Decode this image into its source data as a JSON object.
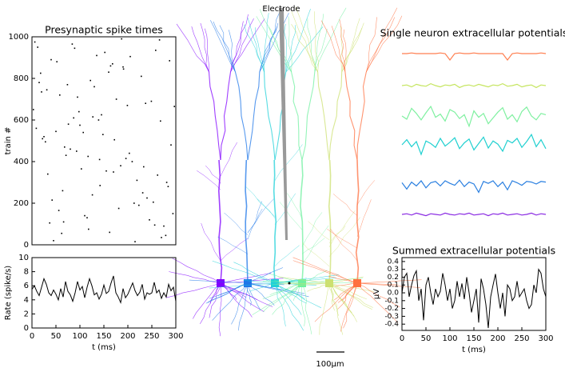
{
  "illustration": {
    "electrode_label": "Electrode",
    "scale_label": "100μm"
  },
  "chart_data": [
    {
      "type": "scatter",
      "title": "Presynaptic spike times",
      "ylabel": "train #",
      "color": "#000000",
      "xlim": [
        0,
        300
      ],
      "ylim": [
        0,
        1000
      ],
      "yticks": [
        0,
        200,
        400,
        600,
        800,
        1000
      ],
      "x": [
        12,
        245,
        87,
        160,
        33,
        290,
        118,
        205,
        64,
        176,
        9,
        270,
        141,
        52,
        223,
        98,
        187,
        281,
        25,
        130,
        256,
        71,
        199,
        42,
        164,
        233,
        107,
        15,
        294,
        152,
        80,
        215,
        58,
        268,
        126,
        191,
        37,
        249,
        103,
        172,
        6,
        284,
        145,
        62,
        228,
        93,
        181,
        20,
        262,
        135,
        76,
        209,
        45,
        297,
        115,
        168,
        28,
        240,
        89,
        155,
        3,
        275,
        122,
        196,
        50,
        219,
        84,
        162,
        31,
        253,
        139,
        68,
        287,
        110,
        185,
        18,
        231,
        95,
        148,
        266,
        56,
        203,
        127,
        40,
        279,
        170,
        74,
        213,
        100,
        258,
        22,
        142,
        190,
        66,
        237,
        117
      ],
      "y": [
        950,
        120,
        610,
        830,
        340,
        480,
        75,
        905,
        260,
        700,
        560,
        35,
        410,
        880,
        190,
        640,
        990,
        300,
        520,
        760,
        95,
        430,
        670,
        215,
        860,
        375,
        540,
        780,
        150,
        925,
        460,
        15,
        720,
        595,
        240,
        845,
        105,
        690,
        365,
        505,
        975,
        280,
        625,
        55,
        810,
        450,
        175,
        735,
        335,
        910,
        580,
        400,
        20,
        665,
        130,
        870,
        495,
        225,
        945,
        355,
        650,
        90,
        790,
        415,
        545,
        310,
        965,
        60,
        745,
        205,
        600,
        470,
        885,
        140,
        380,
        825,
        250,
        710,
        530,
        985,
        165,
        440,
        615,
        890,
        45,
        350,
        770,
        200,
        575,
        935,
        510,
        285,
        855,
        110,
        680,
        425
      ]
    },
    {
      "type": "line",
      "xlabel": "t (ms)",
      "ylabel": "Rate (spike/s)",
      "color": "#000000",
      "xlim": [
        0,
        300
      ],
      "ylim": [
        0,
        10
      ],
      "xticks": [
        0,
        50,
        100,
        150,
        200,
        250,
        300
      ],
      "yticks": [
        0,
        2,
        4,
        6,
        8,
        10
      ],
      "x": [
        0,
        5,
        10,
        15,
        20,
        25,
        30,
        35,
        40,
        45,
        50,
        55,
        60,
        65,
        70,
        75,
        80,
        85,
        90,
        95,
        100,
        105,
        110,
        115,
        120,
        125,
        130,
        135,
        140,
        145,
        150,
        155,
        160,
        165,
        170,
        175,
        180,
        185,
        190,
        195,
        200,
        205,
        210,
        215,
        220,
        225,
        230,
        235,
        240,
        245,
        250,
        255,
        260,
        265,
        270,
        275,
        280,
        285,
        290,
        295,
        300
      ],
      "values": [
        5.5,
        6.0,
        5.2,
        4.6,
        5.8,
        7.0,
        6.2,
        5.0,
        4.6,
        5.4,
        4.8,
        4.0,
        5.6,
        4.4,
        6.6,
        5.2,
        4.7,
        3.8,
        5.0,
        6.6,
        5.4,
        5.9,
        4.3,
        5.8,
        7.0,
        6.0,
        4.7,
        5.0,
        4.1,
        4.8,
        6.1,
        4.9,
        5.2,
        6.4,
        7.4,
        5.0,
        4.4,
        3.6,
        5.6,
        4.3,
        4.8,
        5.6,
        6.4,
        5.3,
        4.6,
        5.1,
        6.2,
        4.1,
        5.0,
        4.8,
        5.0,
        6.5,
        5.0,
        5.4,
        4.2,
        5.0,
        4.4,
        6.2,
        5.3,
        5.8,
        3.8
      ]
    },
    {
      "type": "traces",
      "title": "Single neuron extracellular potentials",
      "xlim": [
        0,
        300
      ],
      "x": [
        0,
        10,
        20,
        30,
        40,
        50,
        60,
        70,
        80,
        90,
        100,
        110,
        120,
        130,
        140,
        150,
        160,
        170,
        180,
        190,
        200,
        210,
        220,
        230,
        240,
        250,
        260,
        270,
        280,
        290,
        300
      ],
      "series": [
        {
          "color": "#ff7f50",
          "values": [
            0,
            0,
            0.1,
            0,
            0,
            0,
            0,
            0,
            0.1,
            0,
            -1.0,
            0,
            0.1,
            0,
            0,
            0.1,
            0,
            0,
            0,
            0,
            0,
            0,
            -1.0,
            0,
            0.1,
            0,
            0,
            0,
            0,
            0.1,
            0
          ]
        },
        {
          "color": "#c5e55f",
          "values": [
            0,
            0.1,
            -0.2,
            0.2,
            0,
            -0.1,
            0.3,
            0,
            -0.2,
            0.1,
            0,
            0.2,
            -0.3,
            0,
            0.1,
            -0.1,
            0.2,
            0,
            -0.2,
            0.1,
            0,
            0.3,
            -0.1,
            0,
            0.2,
            -0.2,
            0,
            0.1,
            -0.3,
            0.1,
            0
          ]
        },
        {
          "color": "#7ff0a0",
          "values": [
            0,
            -0.5,
            1.2,
            0.4,
            -0.6,
            0.5,
            1.5,
            -0.2,
            0.3,
            -0.8,
            1.0,
            0.6,
            -0.4,
            0.2,
            -1.6,
            0.8,
            -0.2,
            0.4,
            -1.2,
            -0.3,
            0.6,
            1.3,
            -0.5,
            0.2,
            -0.9,
            0.7,
            1.4,
            0,
            -0.6,
            0.4,
            0.2
          ]
        },
        {
          "color": "#20d0d0",
          "values": [
            0,
            0.8,
            -0.3,
            0.5,
            -1.5,
            0.6,
            0.2,
            -0.4,
            1.0,
            -0.2,
            0.4,
            1.1,
            -0.6,
            0.3,
            0.9,
            -0.8,
            0.2,
            1.2,
            -0.5,
            0.6,
            0.1,
            -1.0,
            0.7,
            0.3,
            1.0,
            -0.4,
            0.5,
            1.6,
            -0.3,
            0.8,
            -0.6
          ]
        },
        {
          "color": "#2a7fe0",
          "values": [
            0.2,
            -0.8,
            0.3,
            -0.3,
            0.5,
            -0.6,
            0.2,
            0.4,
            -0.3,
            0.5,
            0.1,
            -0.2,
            0.6,
            -0.4,
            0.3,
            0,
            -1.3,
            0.4,
            0.1,
            0.5,
            -0.4,
            0.3,
            -0.9,
            0.5,
            0.2,
            -0.2,
            0.4,
            0.3,
            0,
            0.4,
            0.3
          ]
        },
        {
          "color": "#8a2be2",
          "values": [
            0,
            0.1,
            -0.1,
            0.2,
            0,
            -0.2,
            0.1,
            0,
            -0.1,
            0.2,
            0,
            -0.1,
            0.1,
            0,
            0.2,
            -0.1,
            0,
            0.1,
            -0.2,
            0.1,
            0,
            0.2,
            -0.1,
            0,
            0.1,
            -0.1,
            0,
            0.2,
            -0.1,
            0.1,
            0
          ]
        }
      ]
    },
    {
      "type": "line",
      "title": "Summed extracellular potentials",
      "xlabel": "t (ms)",
      "ylabel": "μV",
      "color": "#000000",
      "xlim": [
        0,
        300
      ],
      "ylim": [
        -0.48,
        0.45
      ],
      "xticks": [
        0,
        50,
        100,
        150,
        200,
        250,
        300
      ],
      "yticks": [
        -0.4,
        -0.3,
        -0.2,
        -0.1,
        {
          "value": 0,
          "label": "0.0"
        },
        0.1,
        0.2,
        0.3,
        0.4
      ],
      "x": [
        0,
        5,
        10,
        15,
        20,
        25,
        30,
        35,
        40,
        45,
        50,
        55,
        60,
        65,
        70,
        75,
        80,
        85,
        90,
        95,
        100,
        105,
        110,
        115,
        120,
        125,
        130,
        135,
        140,
        145,
        150,
        155,
        160,
        165,
        170,
        175,
        180,
        185,
        190,
        195,
        200,
        205,
        210,
        215,
        220,
        225,
        230,
        235,
        240,
        245,
        250,
        255,
        260,
        265,
        270,
        275,
        280,
        285,
        290,
        295,
        300
      ],
      "values": [
        0.0,
        0.2,
        0.25,
        -0.05,
        0.1,
        0.22,
        0.28,
        -0.1,
        0.05,
        -0.35,
        0.1,
        0.2,
        0.0,
        -0.15,
        0.05,
        -0.05,
        0.02,
        0.25,
        0.1,
        -0.1,
        0.05,
        -0.2,
        -0.1,
        0.15,
        -0.05,
        0.12,
        -0.08,
        0.2,
        0.0,
        -0.25,
        -0.1,
        0.05,
        -0.38,
        0.18,
        0.05,
        -0.15,
        -0.45,
        -0.05,
        0.1,
        0.24,
        0.0,
        -0.2,
        0.0,
        -0.3,
        0.1,
        0.05,
        -0.1,
        -0.05,
        0.15,
        -0.05,
        0.0,
        0.05,
        -0.1,
        -0.2,
        -0.15,
        0.1,
        0.0,
        0.3,
        0.25,
        0.05,
        -0.05
      ]
    }
  ]
}
